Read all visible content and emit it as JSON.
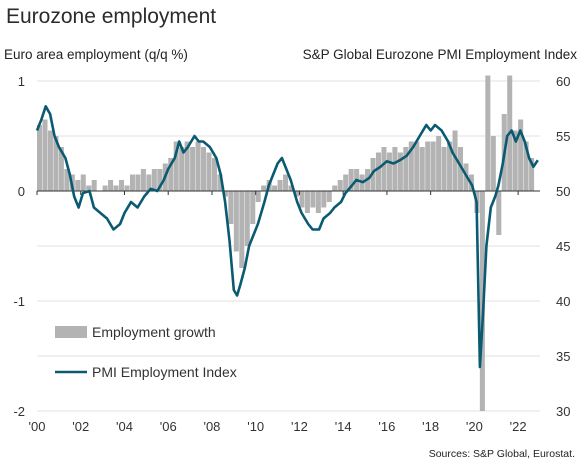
{
  "title": "Eurozone employment",
  "left_axis_label": "Euro area employment (q/q %)",
  "right_axis_label": "S&P Global Eurozone PMI Employment Index",
  "source": "Sources: S&P Global, Eurostat.",
  "colors": {
    "bar": "#b3b3b3",
    "line": "#0a5a72",
    "grid": "#e2e2e2",
    "axis": "#333333"
  },
  "chart_data": {
    "type": "bar+line",
    "title": "Eurozone employment",
    "legend_position": "lower-left",
    "grid": true,
    "x_axis": {
      "range": [
        2000.0,
        2023.0
      ],
      "ticks": [
        2000,
        2002,
        2004,
        2006,
        2008,
        2010,
        2012,
        2014,
        2016,
        2018,
        2020,
        2022
      ],
      "tick_labels": [
        "'00",
        "'02",
        "'04",
        "'06",
        "'08",
        "'10",
        "'12",
        "'14",
        "'16",
        "'18",
        "'20",
        "'22"
      ]
    },
    "y_left": {
      "label": "Euro area employment (q/q %)",
      "range": [
        -2,
        1.1
      ],
      "ticks": [
        1,
        0,
        -1,
        -2
      ],
      "tick_labels": [
        "1",
        "0",
        "-1",
        "-2"
      ]
    },
    "y_right": {
      "label": "S&P Global Eurozone PMI Employment Index",
      "range": [
        30,
        61
      ],
      "ticks": [
        60,
        55,
        50,
        45,
        40,
        35,
        30
      ],
      "tick_labels": [
        "60",
        "55",
        "50",
        "45",
        "40",
        "35",
        "30"
      ]
    },
    "series": [
      {
        "name": "Employment growth",
        "type": "bar",
        "axis": "left",
        "points": [
          [
            2000.0,
            0.6
          ],
          [
            2000.25,
            0.65
          ],
          [
            2000.5,
            0.55
          ],
          [
            2000.75,
            0.5
          ],
          [
            2001.0,
            0.4
          ],
          [
            2001.25,
            0.2
          ],
          [
            2001.5,
            0.15
          ],
          [
            2001.75,
            0.1
          ],
          [
            2002.0,
            0.15
          ],
          [
            2002.25,
            0.05
          ],
          [
            2002.5,
            0.1
          ],
          [
            2002.75,
            0.0
          ],
          [
            2003.0,
            0.05
          ],
          [
            2003.25,
            0.1
          ],
          [
            2003.5,
            0.05
          ],
          [
            2003.75,
            0.1
          ],
          [
            2004.0,
            0.05
          ],
          [
            2004.25,
            0.15
          ],
          [
            2004.5,
            0.15
          ],
          [
            2004.75,
            0.2
          ],
          [
            2005.0,
            0.15
          ],
          [
            2005.25,
            0.2
          ],
          [
            2005.5,
            0.2
          ],
          [
            2005.75,
            0.25
          ],
          [
            2006.0,
            0.3
          ],
          [
            2006.25,
            0.45
          ],
          [
            2006.5,
            0.4
          ],
          [
            2006.75,
            0.45
          ],
          [
            2007.0,
            0.4
          ],
          [
            2007.25,
            0.45
          ],
          [
            2007.5,
            0.4
          ],
          [
            2007.75,
            0.35
          ],
          [
            2008.0,
            0.3
          ],
          [
            2008.25,
            0.15
          ],
          [
            2008.5,
            -0.05
          ],
          [
            2008.75,
            -0.3
          ],
          [
            2009.0,
            -0.55
          ],
          [
            2009.25,
            -0.7
          ],
          [
            2009.5,
            -0.5
          ],
          [
            2009.75,
            -0.3
          ],
          [
            2010.0,
            -0.1
          ],
          [
            2010.25,
            0.05
          ],
          [
            2010.5,
            0.1
          ],
          [
            2010.75,
            0.05
          ],
          [
            2011.0,
            0.1
          ],
          [
            2011.25,
            0.15
          ],
          [
            2011.5,
            0.05
          ],
          [
            2011.75,
            -0.05
          ],
          [
            2012.0,
            -0.15
          ],
          [
            2012.25,
            -0.2
          ],
          [
            2012.5,
            -0.15
          ],
          [
            2012.75,
            -0.2
          ],
          [
            2013.0,
            -0.15
          ],
          [
            2013.25,
            -0.1
          ],
          [
            2013.5,
            0.05
          ],
          [
            2013.75,
            0.1
          ],
          [
            2014.0,
            0.15
          ],
          [
            2014.25,
            0.2
          ],
          [
            2014.5,
            0.2
          ],
          [
            2014.75,
            0.15
          ],
          [
            2015.0,
            0.2
          ],
          [
            2015.25,
            0.3
          ],
          [
            2015.5,
            0.35
          ],
          [
            2015.75,
            0.4
          ],
          [
            2016.0,
            0.35
          ],
          [
            2016.25,
            0.4
          ],
          [
            2016.5,
            0.35
          ],
          [
            2016.75,
            0.4
          ],
          [
            2017.0,
            0.45
          ],
          [
            2017.25,
            0.45
          ],
          [
            2017.5,
            0.4
          ],
          [
            2017.75,
            0.45
          ],
          [
            2018.0,
            0.45
          ],
          [
            2018.25,
            0.5
          ],
          [
            2018.5,
            0.4
          ],
          [
            2018.75,
            0.45
          ],
          [
            2019.0,
            0.55
          ],
          [
            2019.25,
            0.4
          ],
          [
            2019.5,
            0.25
          ],
          [
            2019.75,
            0.15
          ],
          [
            2020.0,
            -0.2
          ],
          [
            2020.25,
            -2.0
          ],
          [
            2020.5,
            1.05
          ],
          [
            2020.75,
            0.5
          ],
          [
            2021.0,
            -0.4
          ],
          [
            2021.25,
            0.7
          ],
          [
            2021.5,
            1.05
          ],
          [
            2021.75,
            0.55
          ],
          [
            2022.0,
            0.65
          ],
          [
            2022.25,
            0.45
          ],
          [
            2022.5,
            0.3
          ]
        ]
      },
      {
        "name": "PMI Employment Index",
        "type": "line",
        "axis": "right",
        "points": [
          [
            2000.0,
            55.5
          ],
          [
            2000.2,
            56.5
          ],
          [
            2000.4,
            57.7
          ],
          [
            2000.6,
            57.0
          ],
          [
            2000.8,
            55.0
          ],
          [
            2001.0,
            54.0
          ],
          [
            2001.3,
            53.0
          ],
          [
            2001.5,
            51.5
          ],
          [
            2001.7,
            49.5
          ],
          [
            2001.9,
            48.5
          ],
          [
            2002.1,
            49.8
          ],
          [
            2002.4,
            50.0
          ],
          [
            2002.6,
            48.5
          ],
          [
            2002.9,
            48.0
          ],
          [
            2003.2,
            47.5
          ],
          [
            2003.5,
            46.5
          ],
          [
            2003.8,
            47.0
          ],
          [
            2004.0,
            48.0
          ],
          [
            2004.3,
            49.0
          ],
          [
            2004.6,
            48.5
          ],
          [
            2004.9,
            49.5
          ],
          [
            2005.2,
            50.2
          ],
          [
            2005.5,
            50.0
          ],
          [
            2005.8,
            51.0
          ],
          [
            2006.0,
            52.0
          ],
          [
            2006.3,
            53.0
          ],
          [
            2006.5,
            54.5
          ],
          [
            2006.7,
            53.5
          ],
          [
            2006.9,
            54.0
          ],
          [
            2007.2,
            55.0
          ],
          [
            2007.4,
            54.5
          ],
          [
            2007.6,
            54.5
          ],
          [
            2007.9,
            54.0
          ],
          [
            2008.2,
            53.0
          ],
          [
            2008.4,
            51.5
          ],
          [
            2008.6,
            49.0
          ],
          [
            2008.8,
            45.5
          ],
          [
            2009.0,
            41.0
          ],
          [
            2009.15,
            40.5
          ],
          [
            2009.3,
            41.5
          ],
          [
            2009.5,
            43.0
          ],
          [
            2009.7,
            45.0
          ],
          [
            2009.9,
            46.0
          ],
          [
            2010.1,
            47.0
          ],
          [
            2010.4,
            49.0
          ],
          [
            2010.6,
            50.5
          ],
          [
            2010.8,
            51.5
          ],
          [
            2011.0,
            52.5
          ],
          [
            2011.2,
            53.0
          ],
          [
            2011.4,
            52.0
          ],
          [
            2011.6,
            51.0
          ],
          [
            2011.9,
            49.0
          ],
          [
            2012.1,
            48.0
          ],
          [
            2012.4,
            47.0
          ],
          [
            2012.6,
            46.5
          ],
          [
            2012.9,
            46.5
          ],
          [
            2013.1,
            47.5
          ],
          [
            2013.4,
            48.0
          ],
          [
            2013.6,
            48.5
          ],
          [
            2013.9,
            49.0
          ],
          [
            2014.1,
            49.8
          ],
          [
            2014.4,
            50.5
          ],
          [
            2014.6,
            51.0
          ],
          [
            2014.9,
            50.8
          ],
          [
            2015.2,
            51.2
          ],
          [
            2015.4,
            51.8
          ],
          [
            2015.7,
            52.2
          ],
          [
            2016.0,
            52.7
          ],
          [
            2016.3,
            52.5
          ],
          [
            2016.6,
            52.8
          ],
          [
            2016.9,
            53.2
          ],
          [
            2017.2,
            54.0
          ],
          [
            2017.5,
            55.0
          ],
          [
            2017.8,
            56.0
          ],
          [
            2018.0,
            55.5
          ],
          [
            2018.2,
            56.0
          ],
          [
            2018.5,
            55.5
          ],
          [
            2018.8,
            54.5
          ],
          [
            2019.0,
            53.5
          ],
          [
            2019.3,
            52.5
          ],
          [
            2019.6,
            51.5
          ],
          [
            2019.9,
            50.5
          ],
          [
            2020.1,
            49.0
          ],
          [
            2020.25,
            34.0
          ],
          [
            2020.4,
            39.0
          ],
          [
            2020.55,
            45.0
          ],
          [
            2020.75,
            48.5
          ],
          [
            2020.95,
            49.5
          ],
          [
            2021.1,
            50.5
          ],
          [
            2021.3,
            52.5
          ],
          [
            2021.5,
            55.0
          ],
          [
            2021.7,
            55.5
          ],
          [
            2021.9,
            54.5
          ],
          [
            2022.1,
            55.5
          ],
          [
            2022.3,
            54.5
          ],
          [
            2022.5,
            53.0
          ],
          [
            2022.7,
            52.2
          ],
          [
            2022.9,
            52.8
          ]
        ]
      }
    ]
  }
}
